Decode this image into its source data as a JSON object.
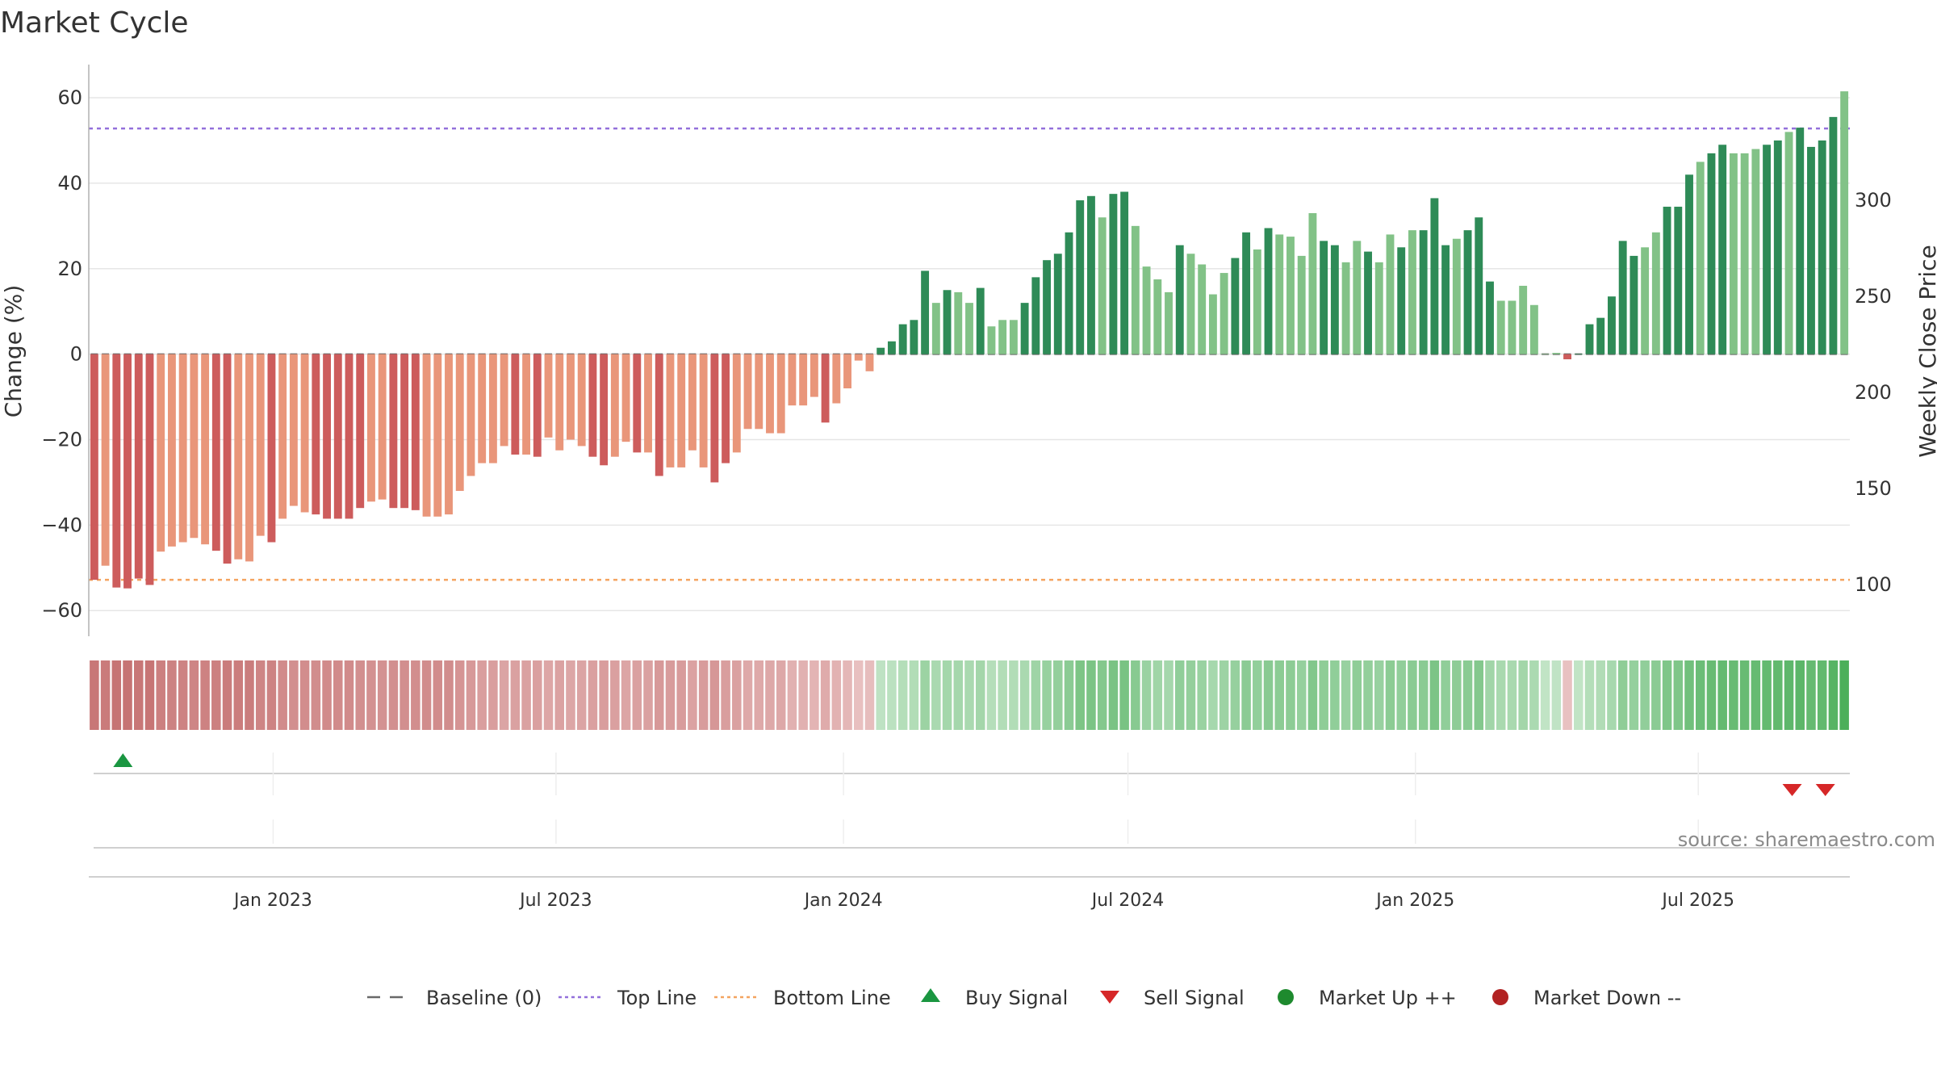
{
  "chart_data": {
    "type": "bar",
    "title": "Market Cycle",
    "ylabel": "Change (%)",
    "y2label": "Weekly Close Price",
    "ylim": [
      -66,
      67
    ],
    "y2lim": [
      73,
      369
    ],
    "yticks": [
      60,
      40,
      20,
      0,
      -20,
      -40,
      -60
    ],
    "ytick_labels": [
      "60",
      "40",
      "20",
      "0",
      "−20",
      "−40",
      "−60"
    ],
    "y2ticks": [
      300,
      250,
      200,
      150,
      100
    ],
    "y2tick_labels": [
      "300",
      "250",
      "200",
      "150",
      "100"
    ],
    "top_line": 52.8,
    "bottom_line": -52.8,
    "baseline": 0,
    "grid": true,
    "x_start": "2022-09-05",
    "x_end": "2025-10-06",
    "x_ticks": [
      "2023-01-01",
      "2023-07-01",
      "2024-01-01",
      "2024-07-01",
      "2025-01-01",
      "2025-07-01"
    ],
    "x_tick_labels": [
      "Jan 2023",
      "Jul 2023",
      "Jan 2024",
      "Jul 2024",
      "Jan 2025",
      "Jul 2025"
    ],
    "first_week": "2022-09-05",
    "values": [
      -52.8,
      -49.5,
      -54.6,
      -54.8,
      -52.5,
      -54.0,
      -46.2,
      -45.0,
      -44.0,
      -43.0,
      -44.5,
      -46.0,
      -49.0,
      -48.0,
      -48.5,
      -42.5,
      -44.0,
      -38.5,
      -35.5,
      -37.0,
      -37.5,
      -38.5,
      -38.5,
      -38.5,
      -36.0,
      -34.5,
      -34.0,
      -36.0,
      -36.0,
      -36.5,
      -38.0,
      -38.0,
      -37.5,
      -32.0,
      -28.5,
      -25.5,
      -25.5,
      -21.5,
      -23.5,
      -23.5,
      -24.0,
      -19.5,
      -22.5,
      -20.0,
      -21.5,
      -24.0,
      -26.0,
      -24.0,
      -20.5,
      -23.0,
      -23.0,
      -28.5,
      -26.5,
      -26.5,
      -22.5,
      -26.5,
      -30.0,
      -25.5,
      -23.0,
      -17.5,
      -17.5,
      -18.5,
      -18.5,
      -12.0,
      -12.0,
      -10.0,
      -16.0,
      -11.5,
      -8.0,
      -1.5,
      -4.0,
      1.5,
      3.0,
      7.0,
      8.0,
      19.5,
      12.0,
      15.0,
      14.5,
      12.0,
      15.5,
      6.5,
      8.0,
      8.0,
      12.0,
      18.0,
      22.0,
      23.5,
      28.5,
      36.0,
      37.0,
      32.0,
      37.5,
      38.0,
      30.0,
      20.5,
      17.5,
      14.5,
      25.5,
      23.5,
      21.0,
      14.0,
      19.0,
      22.5,
      28.5,
      24.5,
      29.5,
      28.0,
      27.5,
      23.0,
      33.0,
      26.5,
      25.5,
      21.5,
      26.5,
      24.0,
      21.5,
      28.0,
      25.0,
      29.0,
      29.0,
      36.5,
      25.5,
      27.0,
      29.0,
      32.0,
      17.0,
      12.5,
      12.5,
      16.0,
      11.5,
      0,
      0.3,
      -1.2,
      0,
      7.0,
      8.5,
      13.5,
      26.5,
      23.0,
      25.0,
      28.5,
      34.5,
      34.5,
      42.0,
      45.0,
      47.0,
      49.0,
      47.0,
      47.0,
      48.0,
      49.0,
      50.0,
      52.0,
      53.0,
      48.5,
      50.0,
      55.5,
      61.5
    ],
    "light_weeks": [
      1,
      6,
      7,
      8,
      9,
      10,
      13,
      14,
      15,
      17,
      18,
      19,
      25,
      26,
      30,
      31,
      32,
      33,
      34,
      35,
      36,
      37,
      39,
      41,
      42,
      43,
      44,
      47,
      48,
      50,
      52,
      53,
      54,
      55,
      58,
      59,
      60,
      61,
      62,
      63,
      64,
      65,
      67,
      68,
      69,
      70,
      76,
      78,
      79,
      81,
      82,
      83,
      91,
      94,
      95,
      96,
      97,
      99,
      100,
      101,
      102,
      105,
      107,
      108,
      109,
      110,
      113,
      114,
      116,
      117,
      119,
      123,
      127,
      128,
      129,
      130,
      131,
      132,
      140,
      141,
      145,
      148,
      149,
      150,
      153,
      158
    ],
    "sell_week_indexes": [
      153,
      156
    ],
    "buy_week_indexes": [
      2
    ],
    "colors": {
      "up_strong": "#2e8b57",
      "up_light": "#82c287",
      "down_strong": "#cd5c5c",
      "down_light": "#e9967a",
      "top_line": "#9370db",
      "bottom_line": "#f4a460",
      "baseline": "#696969",
      "buy": "#1a9641",
      "sell": "#d62728",
      "market_up": "#1e8a2e",
      "market_down": "#b22222",
      "grid": "#e6e6e6",
      "strip_up_max": "#4caf5a",
      "strip_up_min": "#e8f5e9",
      "strip_down_max": "#c26a6a",
      "strip_down_min": "#f6e0e0"
    }
  },
  "legend": [
    {
      "label": "Baseline (0)",
      "icon": "dash-line-icon"
    },
    {
      "label": "Top Line",
      "icon": "dotted-line-icon"
    },
    {
      "label": "Bottom Line",
      "icon": "dotted-line-icon"
    },
    {
      "label": "Buy Signal",
      "icon": "triangle-up-icon"
    },
    {
      "label": "Sell Signal",
      "icon": "triangle-down-icon"
    },
    {
      "label": "Market Up ++",
      "icon": "circle-icon"
    },
    {
      "label": "Market Down --",
      "icon": "circle-icon"
    }
  ],
  "source": "source: sharemaestro.com"
}
